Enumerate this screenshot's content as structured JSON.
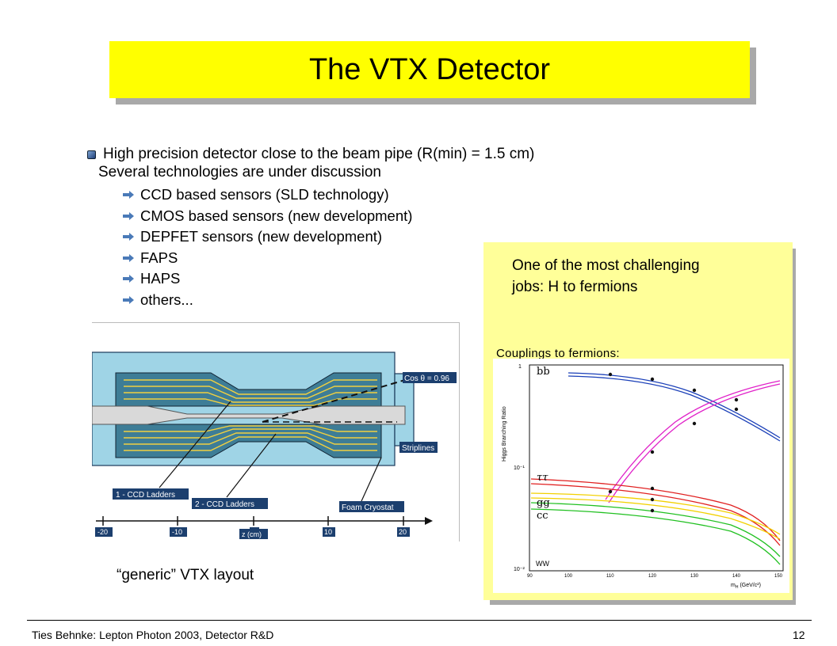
{
  "title": "The VTX Detector",
  "main_bullet": "High precision detector close to the beam pipe (R(min) = 1.5 cm)",
  "sub_heading": "Several technologies are under discussion",
  "technologies": [
    "CCD based sensors (SLD technology)",
    "CMOS based sensors (new development)",
    "DEPFET sensors (new development)",
    "FAPS",
    "HAPS",
    "others..."
  ],
  "left_figure": {
    "labels": {
      "cos_theta": "Cos θ = 0.96",
      "striplines": "Striplines",
      "ladders_1": "1 - CCD Ladders",
      "ladders_2": "2 - CCD Ladders",
      "foam": "Foam Cryostat",
      "axis_unit": "z (cm)"
    },
    "axis_ticks": [
      "-20",
      "-10",
      "0",
      "10",
      "20"
    ]
  },
  "caption": "“generic” VTX layout",
  "panel_text": [
    "One of the most challenging",
    "jobs: H to fermions"
  ],
  "couplings_label": "Couplings to fermions:",
  "plot": {
    "ylabel": "Higgs Branching Ratio",
    "xlabel": "m",
    "xlabel_sub": "H",
    "xlabel_unit": "(GeV/c²)",
    "x_ticks": [
      "90",
      "100",
      "110",
      "120",
      "130",
      "140",
      "150"
    ],
    "y_ticks": [
      "1",
      "10⁻¹",
      "10⁻²"
    ],
    "channel_labels": {
      "bb": "bb",
      "tautau": "ττ",
      "gg": "gg",
      "cc": "cc",
      "ww": "WW"
    }
  },
  "footer_left": "Ties Behnke: Lepton Photon 2003, Detector R&D",
  "footer_right": "12"
}
